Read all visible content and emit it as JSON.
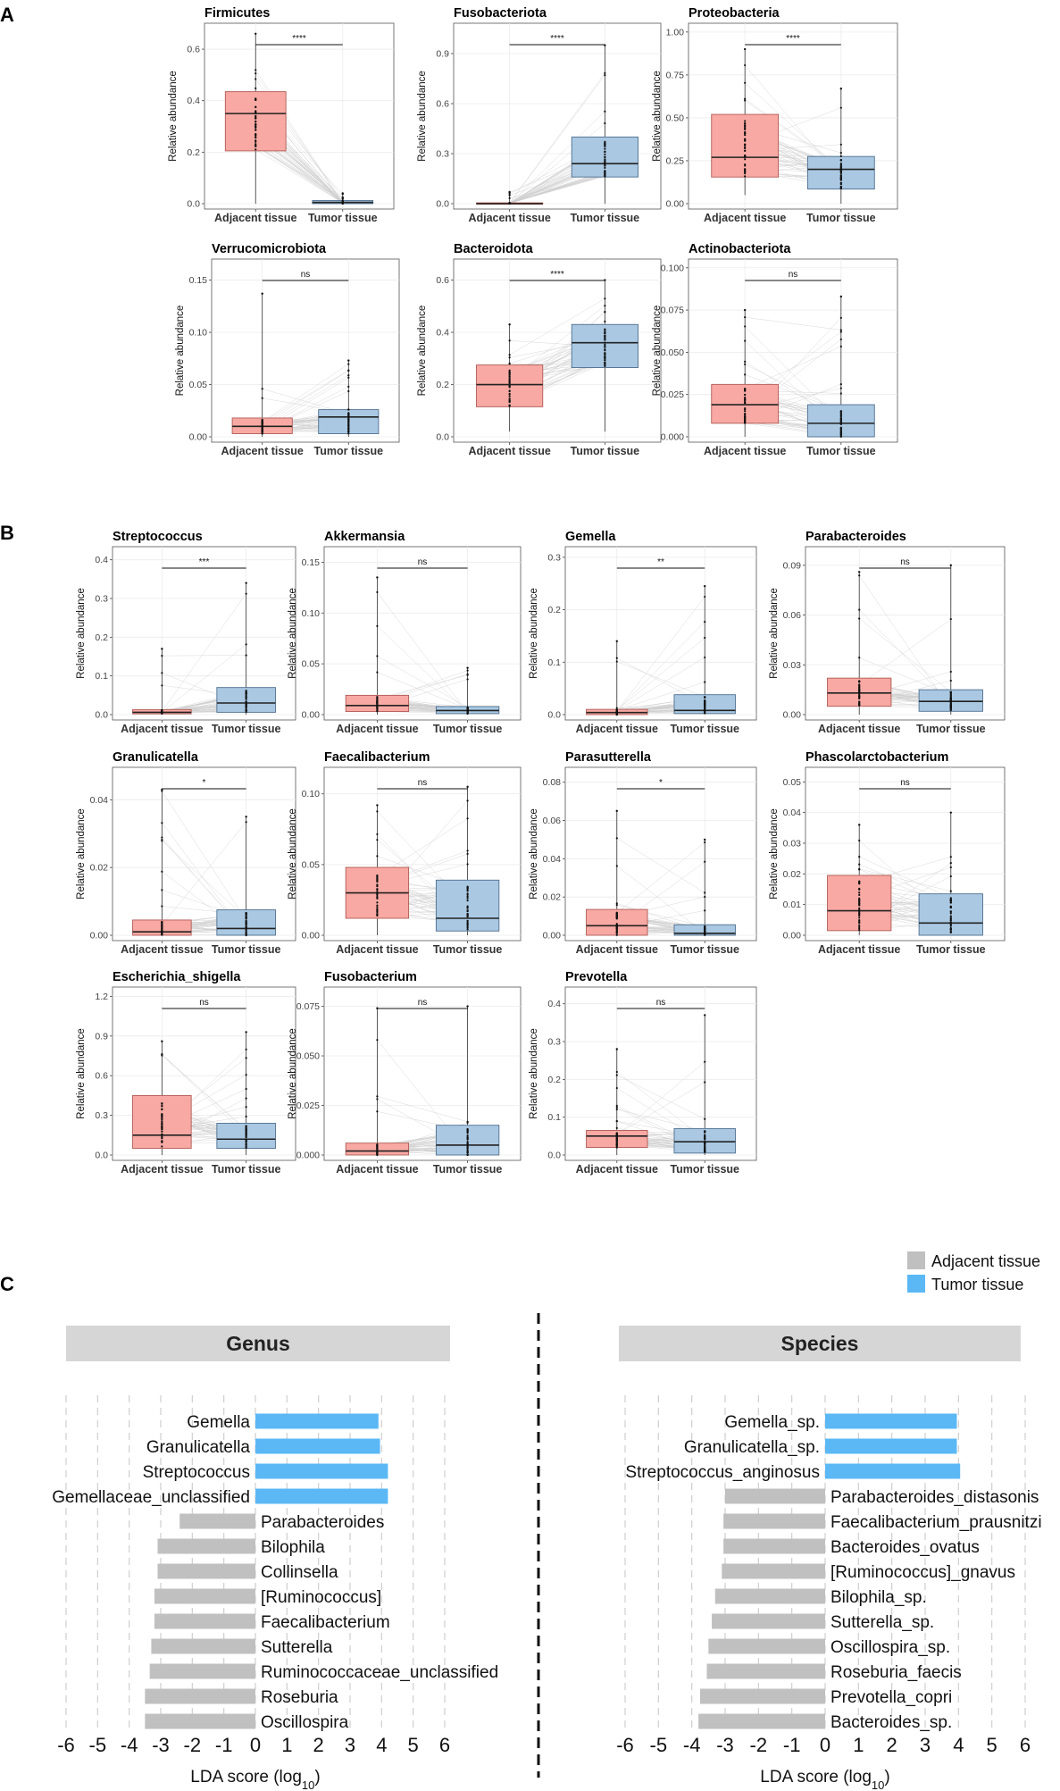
{
  "panel_labels": {
    "a": "A",
    "b": "B",
    "c": "C"
  },
  "colors": {
    "adjacent": "#f8a9a3",
    "adjacent_edge": "#b05a55",
    "tumor": "#aac8e2",
    "tumor_edge": "#4d6e8f",
    "lda_adjacent": "#c0c0c0",
    "lda_tumor": "#5bb8f5",
    "strip": "#d6d6d6"
  },
  "chart_data": [
    {
      "type": "box",
      "panel": "A",
      "ylabel": "Relative abundance",
      "categories": [
        "Adjacent tissue",
        "Tumor tissue"
      ],
      "plots": [
        {
          "title": "Firmicutes",
          "ylim": [
            0,
            0.68
          ],
          "ticks": [
            0.0,
            0.2,
            0.4,
            0.6
          ],
          "tick_labels": [
            "0.0",
            "0.2",
            "0.4",
            "0.6"
          ],
          "sig": "****",
          "boxes": [
            {
              "q1": 0.205,
              "median": 0.35,
              "q3": 0.435,
              "min": 0.0,
              "max": 0.66
            },
            {
              "q1": 0.0,
              "median": 0.005,
              "q3": 0.012,
              "min": 0.0,
              "max": 0.04
            }
          ]
        },
        {
          "title": "Fusobacteriota",
          "ylim": [
            0,
            1.05
          ],
          "ticks": [
            0.0,
            0.3,
            0.6,
            0.9
          ],
          "tick_labels": [
            "0.0",
            "0.3",
            "0.6",
            "0.9"
          ],
          "sig": "****",
          "boxes": [
            {
              "q1": 0.0,
              "median": 0.0,
              "q3": 0.005,
              "min": 0.0,
              "max": 0.07
            },
            {
              "q1": 0.16,
              "median": 0.24,
              "q3": 0.4,
              "min": 0.0,
              "max": 0.95
            }
          ]
        },
        {
          "title": "Proteobacteria",
          "ylim": [
            0,
            1.02
          ],
          "ticks": [
            0.0,
            0.25,
            0.5,
            0.75,
            1.0
          ],
          "tick_labels": [
            "0.00",
            "0.25",
            "0.50",
            "0.75",
            "1.00"
          ],
          "sig": "****",
          "boxes": [
            {
              "q1": 0.155,
              "median": 0.27,
              "q3": 0.52,
              "min": 0.05,
              "max": 0.9
            },
            {
              "q1": 0.085,
              "median": 0.2,
              "q3": 0.275,
              "min": 0.0,
              "max": 0.67
            }
          ]
        },
        {
          "title": "Verrucomicrobiota",
          "ylim": [
            0,
            0.165
          ],
          "ticks": [
            0.0,
            0.05,
            0.1,
            0.15
          ],
          "tick_labels": [
            "0.00",
            "0.05",
            "0.10",
            "0.15"
          ],
          "sig": "ns",
          "boxes": [
            {
              "q1": 0.003,
              "median": 0.01,
              "q3": 0.018,
              "min": 0.0,
              "max": 0.137
            },
            {
              "q1": 0.003,
              "median": 0.019,
              "q3": 0.026,
              "min": 0.0,
              "max": 0.073
            }
          ]
        },
        {
          "title": "Bacteroidota",
          "ylim": [
            0,
            0.66
          ],
          "ticks": [
            0.0,
            0.2,
            0.4,
            0.6
          ],
          "tick_labels": [
            "0.0",
            "0.2",
            "0.4",
            "0.6"
          ],
          "sig": "****",
          "boxes": [
            {
              "q1": 0.115,
              "median": 0.2,
              "q3": 0.275,
              "min": 0.02,
              "max": 0.43
            },
            {
              "q1": 0.265,
              "median": 0.36,
              "q3": 0.43,
              "min": 0.02,
              "max": 0.6
            }
          ]
        },
        {
          "title": "Actinobacteriota",
          "ylim": [
            0,
            0.102
          ],
          "ticks": [
            0.0,
            0.025,
            0.05,
            0.075,
            0.1
          ],
          "tick_labels": [
            "0.000",
            "0.025",
            "0.050",
            "0.075",
            "0.100"
          ],
          "sig": "ns",
          "boxes": [
            {
              "q1": 0.008,
              "median": 0.019,
              "q3": 0.031,
              "min": 0.0,
              "max": 0.075
            },
            {
              "q1": 0.0,
              "median": 0.008,
              "q3": 0.019,
              "min": 0.0,
              "max": 0.083
            }
          ]
        }
      ]
    },
    {
      "type": "box",
      "panel": "B",
      "ylabel": "Relative abundance",
      "categories": [
        "Adjacent tissue",
        "Tumor tissue"
      ],
      "plots": [
        {
          "title": "Streptococcus",
          "ylim": [
            0,
            0.42
          ],
          "ticks": [
            0.0,
            0.1,
            0.2,
            0.3,
            0.4
          ],
          "tick_labels": [
            "0.0",
            "0.1",
            "0.2",
            "0.3",
            "0.4"
          ],
          "sig": "***",
          "boxes": [
            {
              "q1": 0.002,
              "median": 0.006,
              "q3": 0.013,
              "min": 0.0,
              "max": 0.17
            },
            {
              "q1": 0.006,
              "median": 0.03,
              "q3": 0.07,
              "min": 0.0,
              "max": 0.34
            }
          ]
        },
        {
          "title": "Akkermansia",
          "ylim": [
            0,
            0.16
          ],
          "ticks": [
            0.0,
            0.05,
            0.1,
            0.15
          ],
          "tick_labels": [
            "0.00",
            "0.05",
            "0.10",
            "0.15"
          ],
          "sig": "ns",
          "boxes": [
            {
              "q1": 0.003,
              "median": 0.009,
              "q3": 0.019,
              "min": 0.0,
              "max": 0.135
            },
            {
              "q1": 0.001,
              "median": 0.004,
              "q3": 0.008,
              "min": 0.0,
              "max": 0.046
            }
          ]
        },
        {
          "title": "Gemella",
          "ylim": [
            0,
            0.31
          ],
          "ticks": [
            0.0,
            0.1,
            0.2,
            0.3
          ],
          "tick_labels": [
            "0.0",
            "0.1",
            "0.2",
            "0.3"
          ],
          "sig": "**",
          "boxes": [
            {
              "q1": 0.0,
              "median": 0.004,
              "q3": 0.01,
              "min": 0.0,
              "max": 0.14
            },
            {
              "q1": 0.002,
              "median": 0.008,
              "q3": 0.038,
              "min": 0.0,
              "max": 0.245
            }
          ]
        },
        {
          "title": "Parabacteroides",
          "ylim": [
            0,
            0.098
          ],
          "ticks": [
            0.0,
            0.03,
            0.06,
            0.09
          ],
          "tick_labels": [
            "0.00",
            "0.03",
            "0.06",
            "0.09"
          ],
          "sig": "ns",
          "boxes": [
            {
              "q1": 0.005,
              "median": 0.013,
              "q3": 0.022,
              "min": 0.0,
              "max": 0.086
            },
            {
              "q1": 0.002,
              "median": 0.008,
              "q3": 0.015,
              "min": 0.0,
              "max": 0.09
            }
          ]
        },
        {
          "title": "Granulicatella",
          "ylim": [
            0,
            0.048
          ],
          "ticks": [
            0.0,
            0.02,
            0.04
          ],
          "tick_labels": [
            "0.00",
            "0.02",
            "0.04"
          ],
          "sig": "*",
          "boxes": [
            {
              "q1": 0.0,
              "median": 0.001,
              "q3": 0.0045,
              "min": 0.0,
              "max": 0.043
            },
            {
              "q1": 0.0,
              "median": 0.002,
              "q3": 0.0075,
              "min": 0.0,
              "max": 0.035
            }
          ]
        },
        {
          "title": "Faecalibacterium",
          "ylim": [
            0,
            0.115
          ],
          "ticks": [
            0.0,
            0.05,
            0.1
          ],
          "tick_labels": [
            "0.00",
            "0.05",
            "0.10"
          ],
          "sig": "ns",
          "boxes": [
            {
              "q1": 0.012,
              "median": 0.03,
              "q3": 0.048,
              "min": 0.0,
              "max": 0.092
            },
            {
              "q1": 0.003,
              "median": 0.012,
              "q3": 0.039,
              "min": 0.0,
              "max": 0.105
            }
          ]
        },
        {
          "title": "Parasutterella",
          "ylim": [
            0,
            0.085
          ],
          "ticks": [
            0.0,
            0.02,
            0.04,
            0.06,
            0.08
          ],
          "tick_labels": [
            "0.00",
            "0.02",
            "0.04",
            "0.06",
            "0.08"
          ],
          "sig": "*",
          "boxes": [
            {
              "q1": 0.0,
              "median": 0.005,
              "q3": 0.0135,
              "min": 0.0,
              "max": 0.065
            },
            {
              "q1": 0.0,
              "median": 0.001,
              "q3": 0.0055,
              "min": 0.0,
              "max": 0.05
            }
          ]
        },
        {
          "title": "Phascolarctobacterium",
          "ylim": [
            0,
            0.053
          ],
          "ticks": [
            0.0,
            0.01,
            0.02,
            0.03,
            0.04,
            0.05
          ],
          "tick_labels": [
            "0.00",
            "0.01",
            "0.02",
            "0.03",
            "0.04",
            "0.05"
          ],
          "sig": "ns",
          "boxes": [
            {
              "q1": 0.0015,
              "median": 0.008,
              "q3": 0.0195,
              "min": 0.0,
              "max": 0.036
            },
            {
              "q1": 0.0,
              "median": 0.004,
              "q3": 0.0135,
              "min": 0.0,
              "max": 0.04
            }
          ]
        },
        {
          "title": "Escherichia_shigella",
          "ylim": [
            0,
            1.23
          ],
          "ticks": [
            0.0,
            0.3,
            0.6,
            0.9,
            1.2
          ],
          "tick_labels": [
            "0.0",
            "0.3",
            "0.6",
            "0.9",
            "1.2"
          ],
          "sig": "ns",
          "boxes": [
            {
              "q1": 0.05,
              "median": 0.15,
              "q3": 0.45,
              "min": 0.0,
              "max": 0.86
            },
            {
              "q1": 0.05,
              "median": 0.12,
              "q3": 0.24,
              "min": 0.0,
              "max": 0.93
            }
          ]
        },
        {
          "title": "Fusobacterium",
          "ylim": [
            0,
            0.082
          ],
          "ticks": [
            0.0,
            0.025,
            0.05,
            0.075
          ],
          "tick_labels": [
            "0.000",
            "0.025",
            "0.050",
            "0.075"
          ],
          "sig": "ns",
          "boxes": [
            {
              "q1": 0.0,
              "median": 0.002,
              "q3": 0.006,
              "min": 0.0,
              "max": 0.074
            },
            {
              "q1": 0.0,
              "median": 0.005,
              "q3": 0.015,
              "min": 0.0,
              "max": 0.075
            }
          ]
        },
        {
          "title": "Prevotella",
          "ylim": [
            0,
            0.43
          ],
          "ticks": [
            0.0,
            0.1,
            0.2,
            0.3,
            0.4
          ],
          "tick_labels": [
            "0.0",
            "0.1",
            "0.2",
            "0.3",
            "0.4"
          ],
          "sig": "ns",
          "boxes": [
            {
              "q1": 0.02,
              "median": 0.05,
              "q3": 0.065,
              "min": 0.0,
              "max": 0.28
            },
            {
              "q1": 0.005,
              "median": 0.035,
              "q3": 0.07,
              "min": 0.0,
              "max": 0.37
            }
          ]
        }
      ]
    },
    {
      "type": "bar",
      "panel": "C",
      "orientation": "horizontal",
      "legend": [
        {
          "label": "Adjacent tissue",
          "key": "adjacent"
        },
        {
          "label": "Tumor tissue",
          "key": "tumor"
        }
      ],
      "xlim": [
        -6,
        6
      ],
      "xticks": [
        "-6",
        "-5",
        "-4",
        "-3",
        "-2",
        "-1",
        "0",
        "1",
        "2",
        "3",
        "4",
        "5",
        "6"
      ],
      "xlabel_main": "LDA score (log",
      "xlabel_sub": "10",
      "xlabel_end": ")",
      "facets": [
        {
          "title": "Genus",
          "bars": [
            {
              "label": "Gemella",
              "value": 3.9,
              "group": "tumor"
            },
            {
              "label": "Granulicatella",
              "value": 3.95,
              "group": "tumor"
            },
            {
              "label": "Streptococcus",
              "value": 4.2,
              "group": "tumor"
            },
            {
              "label": "Gemellaceae_unclassified",
              "value": 4.2,
              "group": "tumor"
            },
            {
              "label": "Parabacteroides",
              "value": -2.4,
              "group": "adjacent"
            },
            {
              "label": "Bilophila",
              "value": -3.1,
              "group": "adjacent"
            },
            {
              "label": "Collinsella",
              "value": -3.1,
              "group": "adjacent"
            },
            {
              "label": "[Ruminococcus]",
              "value": -3.2,
              "group": "adjacent"
            },
            {
              "label": "Faecalibacterium",
              "value": -3.2,
              "group": "adjacent"
            },
            {
              "label": "Sutterella",
              "value": -3.3,
              "group": "adjacent"
            },
            {
              "label": "Ruminococcaceae_unclassified",
              "value": -3.35,
              "group": "adjacent"
            },
            {
              "label": "Roseburia",
              "value": -3.5,
              "group": "adjacent"
            },
            {
              "label": "Oscillospira",
              "value": -3.5,
              "group": "adjacent"
            }
          ]
        },
        {
          "title": "Species",
          "bars": [
            {
              "label": "Gemella_sp.",
              "value": 3.95,
              "group": "tumor"
            },
            {
              "label": "Granulicatella_sp.",
              "value": 3.95,
              "group": "tumor"
            },
            {
              "label": "Streptococcus_anginosus",
              "value": 4.05,
              "group": "tumor"
            },
            {
              "label": "Parabacteroides_distasonis",
              "value": -3.0,
              "group": "adjacent"
            },
            {
              "label": "Faecalibacterium_prausnitzi",
              "value": -3.05,
              "group": "adjacent"
            },
            {
              "label": "Bacteroides_ovatus",
              "value": -3.05,
              "group": "adjacent"
            },
            {
              "label": "[Ruminococcus]_gnavus",
              "value": -3.1,
              "group": "adjacent"
            },
            {
              "label": "Bilophila_sp.",
              "value": -3.3,
              "group": "adjacent"
            },
            {
              "label": "Sutterella_sp.",
              "value": -3.4,
              "group": "adjacent"
            },
            {
              "label": "Oscillospira_sp.",
              "value": -3.5,
              "group": "adjacent"
            },
            {
              "label": "Roseburia_faecis",
              "value": -3.55,
              "group": "adjacent"
            },
            {
              "label": "Prevotella_copri",
              "value": -3.75,
              "group": "adjacent"
            },
            {
              "label": "Bacteroides_sp.",
              "value": -3.8,
              "group": "adjacent"
            }
          ]
        }
      ]
    }
  ]
}
